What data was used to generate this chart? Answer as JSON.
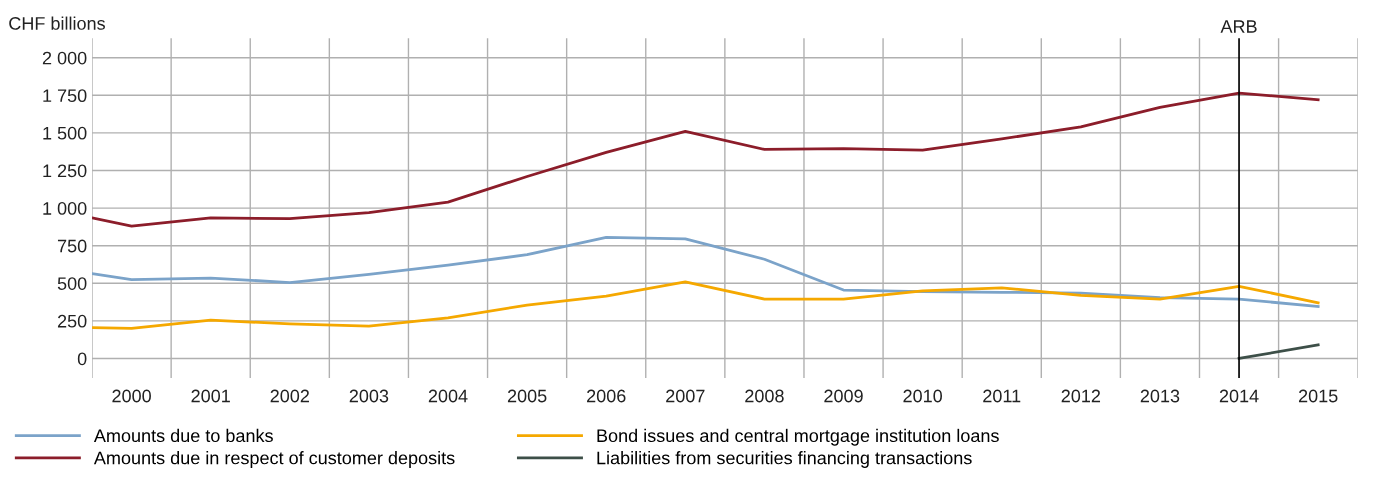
{
  "chart_data": {
    "type": "line",
    "ylabel": "CHF billions",
    "x": [
      1999.5,
      2000,
      2001,
      2002,
      2003,
      2004,
      2005,
      2006,
      2007,
      2008,
      2009,
      2010,
      2011,
      2012,
      2013,
      2014,
      2015
    ],
    "series": [
      {
        "name": "Amounts due to banks",
        "color": "#7ba3c9",
        "values": [
          565,
          525,
          535,
          505,
          560,
          620,
          690,
          805,
          795,
          660,
          455,
          445,
          440,
          435,
          405,
          395,
          345
        ]
      },
      {
        "name": "Amounts due in respect of customer deposits",
        "color": "#8c1d2a",
        "values": [
          935,
          880,
          935,
          930,
          970,
          1040,
          1210,
          1370,
          1510,
          1390,
          1395,
          1385,
          1460,
          1540,
          1670,
          1765,
          1720
        ]
      },
      {
        "name": "Bond issues and central mortgage institution loans",
        "color": "#f5a800",
        "values": [
          205,
          200,
          255,
          230,
          215,
          270,
          355,
          415,
          510,
          395,
          395,
          450,
          470,
          420,
          395,
          480,
          370
        ]
      },
      {
        "name": "Liabilities from securities financing transactions",
        "color": "#3d4f48",
        "x": [
          2014,
          2015
        ],
        "values": [
          0,
          90
        ]
      }
    ],
    "xlim": [
      1999.5,
      2015.5
    ],
    "xticks": [
      {
        "value": 1999.5,
        "label": null
      },
      {
        "value": 2000,
        "label": "2000"
      },
      {
        "value": 2000.5,
        "label": null
      },
      {
        "value": 2001,
        "label": "2001"
      },
      {
        "value": 2001.5,
        "label": null
      },
      {
        "value": 2002,
        "label": "2002"
      },
      {
        "value": 2002.5,
        "label": null
      },
      {
        "value": 2003,
        "label": "2003"
      },
      {
        "value": 2003.5,
        "label": null
      },
      {
        "value": 2004,
        "label": "2004"
      },
      {
        "value": 2004.5,
        "label": null
      },
      {
        "value": 2005,
        "label": "2005"
      },
      {
        "value": 2005.5,
        "label": null
      },
      {
        "value": 2006,
        "label": "2006"
      },
      {
        "value": 2006.5,
        "label": null
      },
      {
        "value": 2007,
        "label": "2007"
      },
      {
        "value": 2007.5,
        "label": null
      },
      {
        "value": 2008,
        "label": "2008"
      },
      {
        "value": 2008.5,
        "label": null
      },
      {
        "value": 2009,
        "label": "2009"
      },
      {
        "value": 2009.5,
        "label": null
      },
      {
        "value": 2010,
        "label": "2010"
      },
      {
        "value": 2010.5,
        "label": null
      },
      {
        "value": 2011,
        "label": "2011"
      },
      {
        "value": 2011.5,
        "label": null
      },
      {
        "value": 2012,
        "label": "2012"
      },
      {
        "value": 2012.5,
        "label": null
      },
      {
        "value": 2013,
        "label": "2013"
      },
      {
        "value": 2013.5,
        "label": null
      },
      {
        "value": 2014,
        "label": "2014"
      },
      {
        "value": 2014.5,
        "label": null
      },
      {
        "value": 2015,
        "label": "2015"
      },
      {
        "value": 2015.5,
        "label": null
      }
    ],
    "ylim": [
      -130,
      2130
    ],
    "yticks": [
      0,
      250,
      500,
      750,
      {
        "value": 1000,
        "label": "1 000"
      },
      {
        "value": 1250,
        "label": "1 250"
      },
      {
        "value": 1500,
        "label": "1 500"
      },
      {
        "value": 1750,
        "label": "1 750"
      },
      {
        "value": 2000,
        "label": "2 000"
      }
    ],
    "ref_lines": [
      {
        "axis": "x",
        "value": 2014,
        "label": "ARB",
        "color": "#000000"
      }
    ],
    "grid": true,
    "legend": "bottom",
    "marker": "none",
    "line_style": "solid"
  }
}
